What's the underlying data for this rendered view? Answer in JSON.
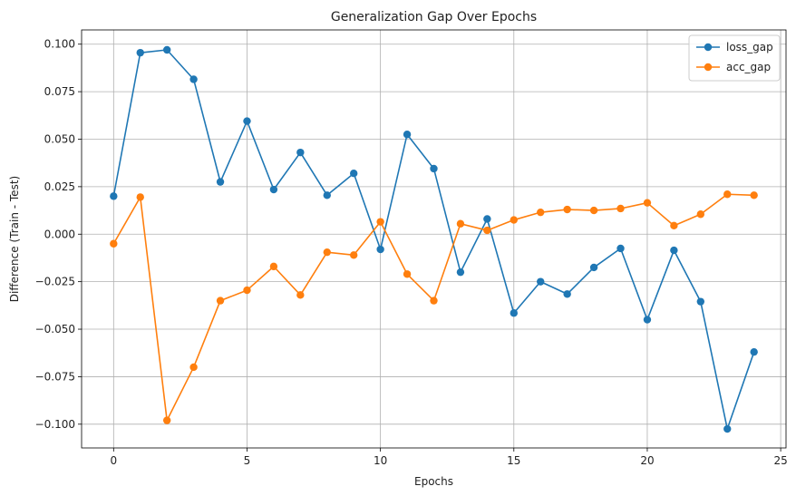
{
  "chart_data": {
    "type": "line",
    "title": "Generalization Gap Over Epochs",
    "xlabel": "Epochs",
    "ylabel": "Difference (Train - Test)",
    "xlim": [
      -1.2,
      25.2
    ],
    "ylim": [
      -0.1125,
      0.1075
    ],
    "xticks": [
      0,
      5,
      10,
      15,
      20,
      25
    ],
    "xtick_labels": [
      "0",
      "5",
      "10",
      "15",
      "20",
      "25"
    ],
    "yticks": [
      -0.1,
      -0.075,
      -0.05,
      -0.025,
      0.0,
      0.025,
      0.05,
      0.075,
      0.1
    ],
    "ytick_labels": [
      "−0.100",
      "−0.075",
      "−0.050",
      "−0.025",
      "0.000",
      "0.025",
      "0.050",
      "0.075",
      "0.100"
    ],
    "grid": true,
    "legend_position": "top-right",
    "x": [
      0,
      1,
      2,
      3,
      4,
      5,
      6,
      7,
      8,
      9,
      10,
      11,
      12,
      13,
      14,
      15,
      16,
      17,
      18,
      19,
      20,
      21,
      22,
      23,
      24
    ],
    "series": [
      {
        "name": "loss_gap",
        "color": "#1f77b4",
        "values": [
          0.02,
          0.0955,
          0.097,
          0.0815,
          0.0275,
          0.0595,
          0.0235,
          0.043,
          0.0205,
          0.032,
          -0.008,
          0.0525,
          0.0345,
          -0.02,
          0.008,
          -0.0415,
          -0.025,
          -0.0315,
          -0.0175,
          -0.0075,
          -0.045,
          -0.0085,
          -0.0355,
          -0.1025,
          -0.062
        ]
      },
      {
        "name": "acc_gap",
        "color": "#ff7f0e",
        "values": [
          -0.005,
          0.0195,
          -0.098,
          -0.07,
          -0.035,
          -0.0295,
          -0.017,
          -0.032,
          -0.0095,
          -0.011,
          0.0065,
          -0.021,
          -0.035,
          0.0055,
          0.002,
          0.0075,
          0.0115,
          0.013,
          0.0125,
          0.0135,
          0.0165,
          0.0045,
          0.0105,
          0.021,
          0.0205
        ]
      }
    ]
  }
}
